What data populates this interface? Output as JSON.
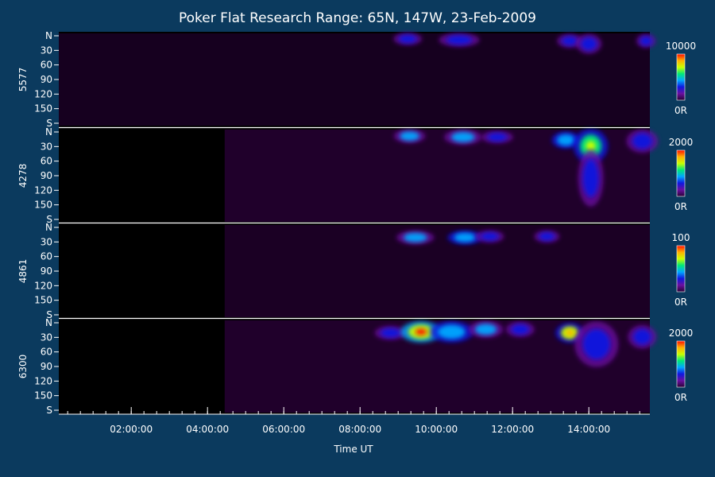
{
  "colors": {
    "background": "#0b3a5e",
    "panel": "#000000",
    "text": "#ffffff",
    "separator": "#ffffff",
    "colormap": [
      "#2a0035",
      "#6a10a0",
      "#1018e0",
      "#00a8ff",
      "#00e878",
      "#c8ff00",
      "#ffb000",
      "#ff1000"
    ]
  },
  "chart_data": {
    "type": "heatmap",
    "title": "Poker Flat Research Range: 65N, 147W, 23-Feb-2009",
    "xlabel": "Time UT",
    "x_ticks": [
      {
        "label": "02:00:00",
        "hours": 2
      },
      {
        "label": "04:00:00",
        "hours": 4
      },
      {
        "label": "06:00:00",
        "hours": 6
      },
      {
        "label": "08:00:00",
        "hours": 8
      },
      {
        "label": "10:00:00",
        "hours": 10
      },
      {
        "label": "12:00:00",
        "hours": 12
      },
      {
        "label": "14:00:00",
        "hours": 14
      }
    ],
    "xlim_hours": [
      0.1,
      15.6
    ],
    "y_ticks": [
      "N",
      "30",
      "60",
      "90",
      "120",
      "150",
      "S"
    ],
    "ylim_degrees": [
      0,
      180
    ],
    "panels": [
      {
        "wavelength": "5577",
        "scale_max": "10000",
        "scale_min": "0R",
        "data_start_hours": 0.1,
        "patches": [
          {
            "t": 9.25,
            "y": 8,
            "w": 0.3,
            "h": 10,
            "v": 0.42
          },
          {
            "t": 10.6,
            "y": 10,
            "w": 0.5,
            "h": 12,
            "v": 0.32
          },
          {
            "t": 13.5,
            "y": 12,
            "w": 0.25,
            "h": 12,
            "v": 0.42
          },
          {
            "t": 14.0,
            "y": 18,
            "w": 0.25,
            "h": 20,
            "v": 0.4
          },
          {
            "t": 15.5,
            "y": 12,
            "w": 0.15,
            "h": 12,
            "v": 0.35
          }
        ]
      },
      {
        "wavelength": "4278",
        "scale_max": "2000",
        "scale_min": "0R",
        "data_start_hours": 4.45,
        "patches": [
          {
            "t": 9.3,
            "y": 10,
            "w": 0.35,
            "h": 12,
            "v": 0.5
          },
          {
            "t": 10.7,
            "y": 12,
            "w": 0.45,
            "h": 14,
            "v": 0.45
          },
          {
            "t": 11.6,
            "y": 12,
            "w": 0.35,
            "h": 10,
            "v": 0.35
          },
          {
            "t": 13.4,
            "y": 18,
            "w": 0.3,
            "h": 16,
            "v": 0.55
          },
          {
            "t": 14.05,
            "y": 30,
            "w": 0.4,
            "h": 40,
            "v": 0.62
          },
          {
            "t": 14.05,
            "y": 95,
            "w": 0.25,
            "h": 70,
            "v": 0.4
          },
          {
            "t": 15.4,
            "y": 20,
            "w": 0.35,
            "h": 25,
            "v": 0.38
          }
        ]
      },
      {
        "wavelength": "4861",
        "scale_max": "100",
        "scale_min": "0R",
        "data_start_hours": 4.45,
        "patches": [
          {
            "t": 9.45,
            "y": 22,
            "w": 0.45,
            "h": 12,
            "v": 0.5
          },
          {
            "t": 10.75,
            "y": 22,
            "w": 0.4,
            "h": 12,
            "v": 0.55
          },
          {
            "t": 11.4,
            "y": 20,
            "w": 0.3,
            "h": 10,
            "v": 0.38
          },
          {
            "t": 12.9,
            "y": 20,
            "w": 0.25,
            "h": 10,
            "v": 0.3
          }
        ]
      },
      {
        "wavelength": "6300",
        "scale_max": "2000",
        "scale_min": "0R",
        "data_start_hours": 4.45,
        "patches": [
          {
            "t": 8.8,
            "y": 22,
            "w": 0.35,
            "h": 12,
            "v": 0.35
          },
          {
            "t": 9.6,
            "y": 20,
            "w": 0.5,
            "h": 22,
            "v": 0.82
          },
          {
            "t": 10.4,
            "y": 20,
            "w": 0.55,
            "h": 22,
            "v": 0.55
          },
          {
            "t": 11.3,
            "y": 15,
            "w": 0.4,
            "h": 16,
            "v": 0.48
          },
          {
            "t": 12.2,
            "y": 15,
            "w": 0.3,
            "h": 14,
            "v": 0.3
          },
          {
            "t": 13.5,
            "y": 22,
            "w": 0.3,
            "h": 20,
            "v": 0.72
          },
          {
            "t": 14.2,
            "y": 45,
            "w": 0.55,
            "h": 55,
            "v": 0.42
          },
          {
            "t": 15.4,
            "y": 30,
            "w": 0.3,
            "h": 25,
            "v": 0.38
          }
        ]
      }
    ]
  }
}
